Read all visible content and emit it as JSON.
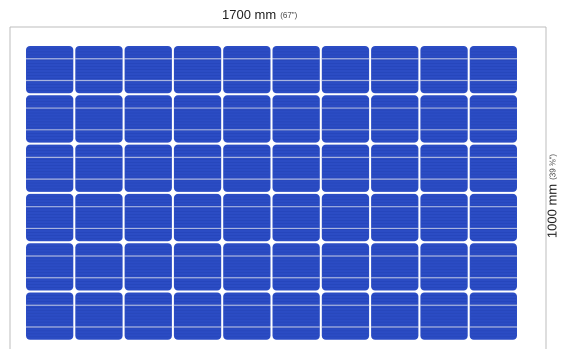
{
  "dimensions": {
    "width": {
      "main": "1700 mm",
      "sub": "(67\")"
    },
    "height": {
      "main": "1000 mm",
      "sub": "(39 ⅜\")"
    }
  },
  "panel": {
    "cell_columns": 10,
    "cell_rows": 6,
    "colors": {
      "cell": "#2b4cc4",
      "cell_dark": "#1d3aa6",
      "busbar": "#a9b4df",
      "grid_line": "#9aa6d6",
      "background": "#ffffff",
      "frame_line": "#bcbcbc",
      "junction_dot": "#ffffff"
    }
  }
}
